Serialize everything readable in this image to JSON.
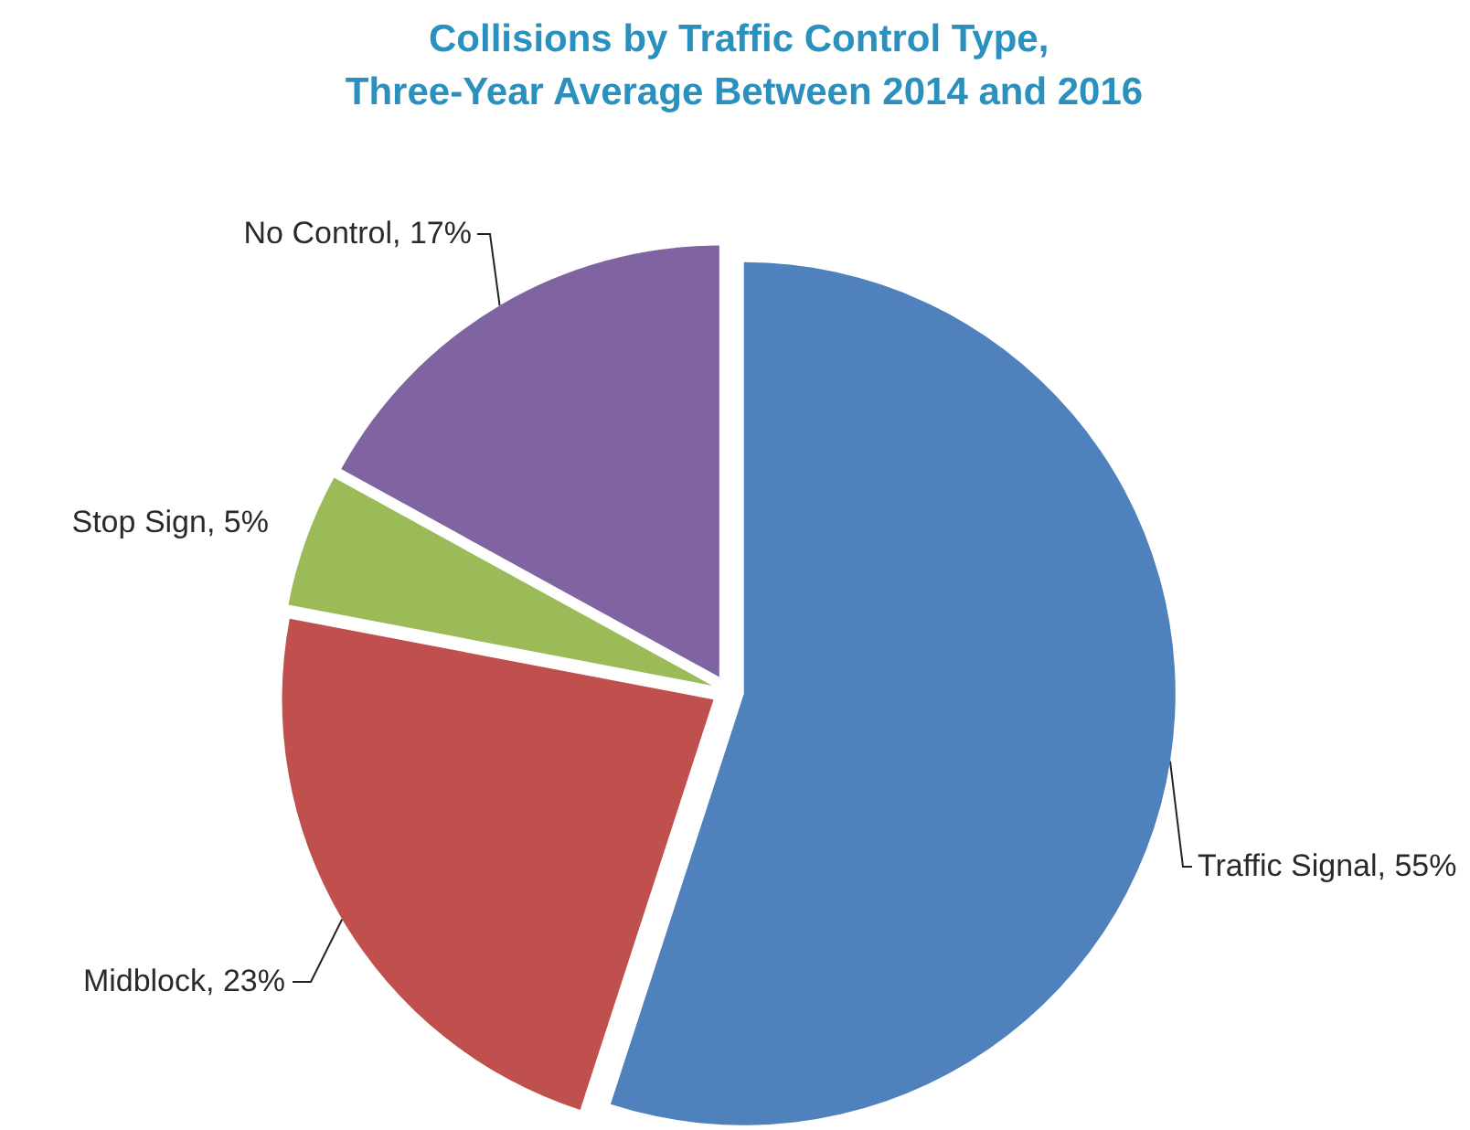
{
  "chart_data": {
    "type": "pie",
    "title": "Collisions by Traffic Control Type, Three-Year Average Between 2014 and 2016",
    "categories": [
      "Traffic Signal",
      "Midblock",
      "Stop Sign",
      "No Control"
    ],
    "values": [
      55,
      23,
      5,
      17
    ],
    "value_labels": [
      "55%",
      "23%",
      "5%",
      "17%"
    ],
    "colors": [
      "#4f81bd",
      "#c0504d",
      "#9bbb59",
      "#8064a2"
    ],
    "legend": false
  }
}
